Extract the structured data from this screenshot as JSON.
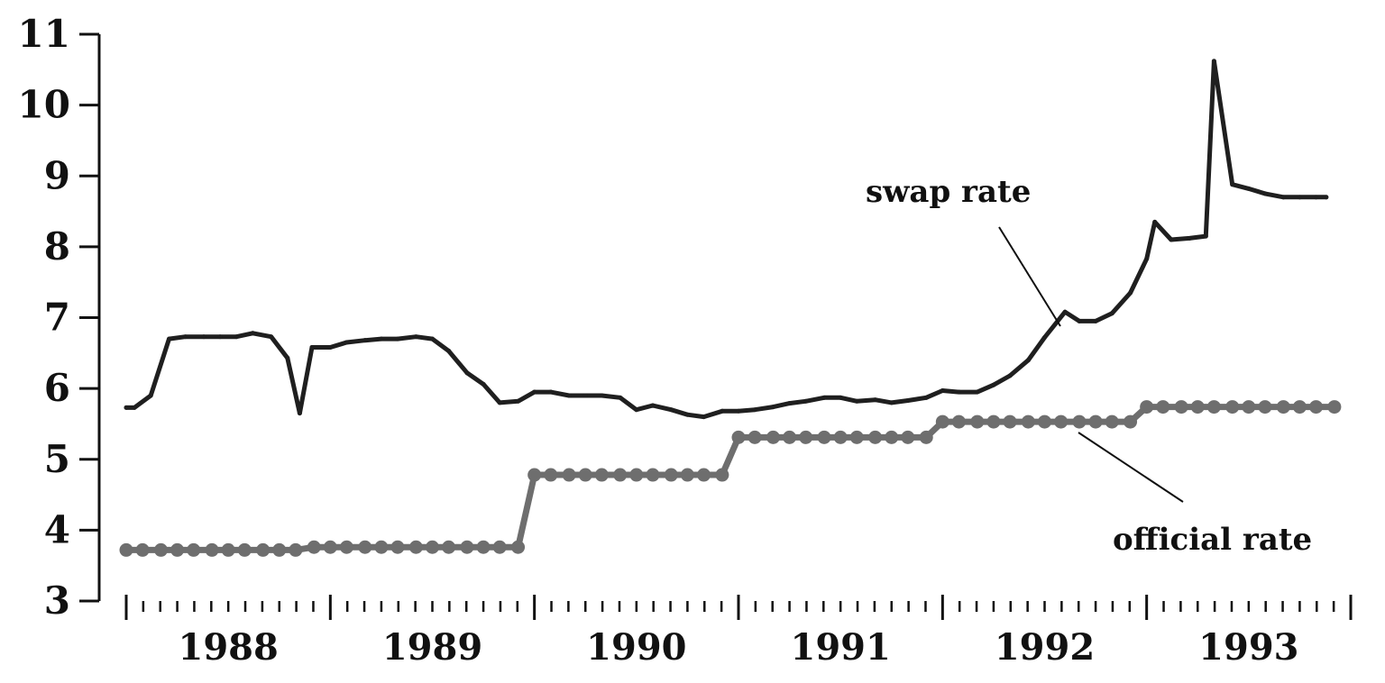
{
  "chart_data": {
    "type": "line",
    "title": "",
    "xlabel": "",
    "ylabel": "",
    "xlim": [
      1988.0,
      1994.0
    ],
    "ylim": [
      3,
      11
    ],
    "y_ticks": [
      "3",
      "4",
      "5",
      "6",
      "7",
      "8",
      "9",
      "10",
      "11"
    ],
    "x_tick_labels": [
      {
        "label": "1988",
        "x": 1988.5
      },
      {
        "label": "1989",
        "x": 1989.5
      },
      {
        "label": "1990",
        "x": 1990.5
      },
      {
        "label": "1991",
        "x": 1991.5
      },
      {
        "label": "1992",
        "x": 1992.5
      },
      {
        "label": "1993",
        "x": 1993.5
      }
    ],
    "grid": false,
    "legend": "none",
    "annotations": [
      {
        "text": "swap rate",
        "series": "swap"
      },
      {
        "text": "official rate",
        "series": "official"
      }
    ],
    "series": [
      {
        "id": "swap",
        "color": "#1f1f1f",
        "style": "line",
        "points": [
          [
            1988.0,
            5.73
          ],
          [
            1988.04,
            5.73
          ],
          [
            1988.12,
            5.9
          ],
          [
            1988.21,
            6.7
          ],
          [
            1988.29,
            6.73
          ],
          [
            1988.38,
            6.73
          ],
          [
            1988.46,
            6.73
          ],
          [
            1988.54,
            6.73
          ],
          [
            1988.62,
            6.78
          ],
          [
            1988.71,
            6.73
          ],
          [
            1988.79,
            6.43
          ],
          [
            1988.85,
            5.65
          ],
          [
            1988.91,
            6.58
          ],
          [
            1989.0,
            6.58
          ],
          [
            1989.08,
            6.65
          ],
          [
            1989.17,
            6.68
          ],
          [
            1989.25,
            6.7
          ],
          [
            1989.33,
            6.7
          ],
          [
            1989.42,
            6.73
          ],
          [
            1989.5,
            6.7
          ],
          [
            1989.58,
            6.53
          ],
          [
            1989.67,
            6.22
          ],
          [
            1989.75,
            6.06
          ],
          [
            1989.83,
            5.8
          ],
          [
            1989.92,
            5.82
          ],
          [
            1990.0,
            5.95
          ],
          [
            1990.08,
            5.95
          ],
          [
            1990.17,
            5.9
          ],
          [
            1990.25,
            5.9
          ],
          [
            1990.33,
            5.9
          ],
          [
            1990.42,
            5.87
          ],
          [
            1990.5,
            5.7
          ],
          [
            1990.58,
            5.76
          ],
          [
            1990.67,
            5.7
          ],
          [
            1990.75,
            5.63
          ],
          [
            1990.83,
            5.6
          ],
          [
            1990.92,
            5.68
          ],
          [
            1991.0,
            5.68
          ],
          [
            1991.08,
            5.7
          ],
          [
            1991.17,
            5.74
          ],
          [
            1991.25,
            5.79
          ],
          [
            1991.33,
            5.82
          ],
          [
            1991.42,
            5.87
          ],
          [
            1991.5,
            5.87
          ],
          [
            1991.58,
            5.82
          ],
          [
            1991.67,
            5.84
          ],
          [
            1991.75,
            5.8
          ],
          [
            1991.83,
            5.83
          ],
          [
            1991.92,
            5.87
          ],
          [
            1992.0,
            5.97
          ],
          [
            1992.08,
            5.95
          ],
          [
            1992.17,
            5.95
          ],
          [
            1992.25,
            6.05
          ],
          [
            1992.33,
            6.18
          ],
          [
            1992.42,
            6.4
          ],
          [
            1992.5,
            6.72
          ],
          [
            1992.6,
            7.08
          ],
          [
            1992.67,
            6.95
          ],
          [
            1992.75,
            6.95
          ],
          [
            1992.83,
            7.06
          ],
          [
            1992.92,
            7.35
          ],
          [
            1993.0,
            7.83
          ],
          [
            1993.04,
            8.35
          ],
          [
            1993.12,
            8.1
          ],
          [
            1993.21,
            8.12
          ],
          [
            1993.29,
            8.15
          ],
          [
            1993.33,
            10.62
          ],
          [
            1993.42,
            8.88
          ],
          [
            1993.5,
            8.82
          ],
          [
            1993.58,
            8.75
          ],
          [
            1993.67,
            8.7
          ],
          [
            1993.75,
            8.7
          ],
          [
            1993.83,
            8.7
          ],
          [
            1993.88,
            8.7
          ]
        ]
      },
      {
        "id": "official",
        "color": "#6e6e6e",
        "style": "dotted-step",
        "points": [
          [
            1988.0,
            3.72
          ],
          [
            1988.08,
            3.72
          ],
          [
            1988.17,
            3.72
          ],
          [
            1988.25,
            3.72
          ],
          [
            1988.33,
            3.72
          ],
          [
            1988.42,
            3.72
          ],
          [
            1988.5,
            3.72
          ],
          [
            1988.58,
            3.72
          ],
          [
            1988.67,
            3.72
          ],
          [
            1988.75,
            3.72
          ],
          [
            1988.83,
            3.72
          ],
          [
            1988.92,
            3.76
          ],
          [
            1989.0,
            3.76
          ],
          [
            1989.08,
            3.76
          ],
          [
            1989.17,
            3.76
          ],
          [
            1989.25,
            3.76
          ],
          [
            1989.33,
            3.76
          ],
          [
            1989.42,
            3.76
          ],
          [
            1989.5,
            3.76
          ],
          [
            1989.58,
            3.76
          ],
          [
            1989.67,
            3.76
          ],
          [
            1989.75,
            3.76
          ],
          [
            1989.83,
            3.76
          ],
          [
            1989.92,
            3.76
          ],
          [
            1990.0,
            4.78
          ],
          [
            1990.08,
            4.78
          ],
          [
            1990.17,
            4.78
          ],
          [
            1990.25,
            4.78
          ],
          [
            1990.33,
            4.78
          ],
          [
            1990.42,
            4.78
          ],
          [
            1990.5,
            4.78
          ],
          [
            1990.58,
            4.78
          ],
          [
            1990.67,
            4.78
          ],
          [
            1990.75,
            4.78
          ],
          [
            1990.83,
            4.78
          ],
          [
            1990.92,
            4.78
          ],
          [
            1991.0,
            5.31
          ],
          [
            1991.08,
            5.31
          ],
          [
            1991.17,
            5.31
          ],
          [
            1991.25,
            5.31
          ],
          [
            1991.33,
            5.31
          ],
          [
            1991.42,
            5.31
          ],
          [
            1991.5,
            5.31
          ],
          [
            1991.58,
            5.31
          ],
          [
            1991.67,
            5.31
          ],
          [
            1991.75,
            5.31
          ],
          [
            1991.83,
            5.31
          ],
          [
            1991.92,
            5.31
          ],
          [
            1992.0,
            5.53
          ],
          [
            1992.08,
            5.53
          ],
          [
            1992.17,
            5.53
          ],
          [
            1992.25,
            5.53
          ],
          [
            1992.33,
            5.53
          ],
          [
            1992.42,
            5.53
          ],
          [
            1992.5,
            5.53
          ],
          [
            1992.58,
            5.53
          ],
          [
            1992.67,
            5.53
          ],
          [
            1992.75,
            5.53
          ],
          [
            1992.83,
            5.53
          ],
          [
            1992.92,
            5.53
          ],
          [
            1993.0,
            5.74
          ],
          [
            1993.08,
            5.74
          ],
          [
            1993.17,
            5.74
          ],
          [
            1993.25,
            5.74
          ],
          [
            1993.33,
            5.74
          ],
          [
            1993.42,
            5.74
          ],
          [
            1993.5,
            5.74
          ],
          [
            1993.58,
            5.74
          ],
          [
            1993.67,
            5.74
          ],
          [
            1993.75,
            5.74
          ],
          [
            1993.83,
            5.74
          ],
          [
            1993.92,
            5.74
          ]
        ]
      }
    ]
  }
}
